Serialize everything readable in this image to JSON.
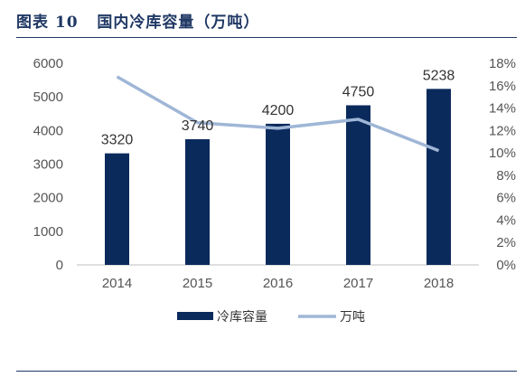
{
  "figure": {
    "label": "图表 10",
    "title": "国内冷库容量（万吨）"
  },
  "chart_data": {
    "type": "bar",
    "categories": [
      "2014",
      "2015",
      "2016",
      "2017",
      "2018"
    ],
    "series": [
      {
        "name": "冷库容量",
        "type": "bar",
        "axis": "left",
        "values": [
          3320,
          3740,
          4200,
          4750,
          5238
        ],
        "color": "#0b2a5c"
      },
      {
        "name": "万吨",
        "type": "line",
        "axis": "right",
        "values": [
          0.168,
          0.127,
          0.122,
          0.13,
          0.102
        ],
        "color": "#9fb6d6"
      }
    ],
    "data_labels": [
      "3320",
      "3740",
      "4200",
      "4750",
      "5238"
    ],
    "y_left": {
      "min": 0,
      "max": 6000,
      "ticks": [
        "0",
        "1000",
        "2000",
        "3000",
        "4000",
        "5000",
        "6000"
      ]
    },
    "y_right": {
      "min": 0,
      "max": 0.18,
      "ticks": [
        "0%",
        "2%",
        "4%",
        "6%",
        "8%",
        "10%",
        "12%",
        "14%",
        "16%",
        "18%"
      ]
    },
    "grid": false,
    "legend_position": "bottom"
  }
}
